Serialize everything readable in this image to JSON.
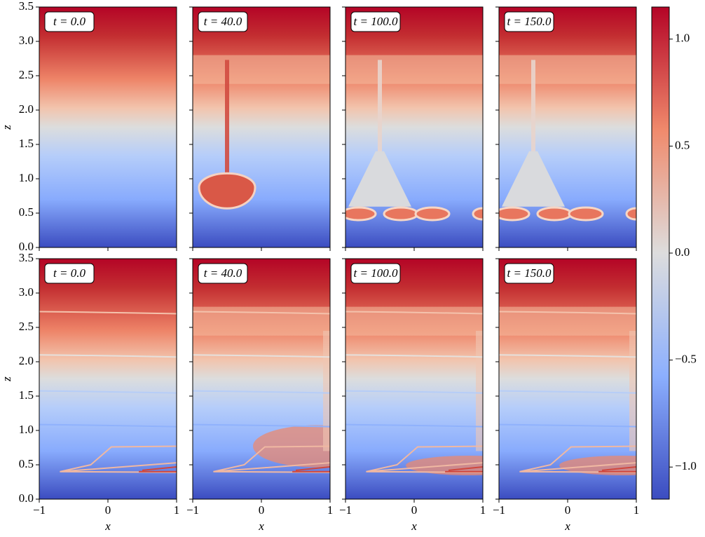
{
  "chart_data": {
    "type": "heatmap",
    "panels": [
      "t = 0.0",
      "t = 40.0",
      "t = 100.0",
      "t = 150.0",
      "t = 0.0",
      "t = 40.0",
      "t = 100.0",
      "t = 150.0"
    ],
    "xlabel": "x",
    "ylabel": "z",
    "xlim": [
      -1,
      1
    ],
    "xticks": [
      {
        "value": -1,
        "label": "−1"
      },
      0,
      1
    ],
    "ylim": [
      0,
      3.5
    ],
    "yticks": [
      {
        "value": 0,
        "label": "0.0"
      },
      0.5,
      {
        "value": 1,
        "label": "1.0"
      },
      1.5,
      {
        "value": 2,
        "label": "2.0"
      },
      2.5,
      {
        "value": 3,
        "label": "3.0"
      },
      3.5
    ],
    "colorbar": {
      "lim": [
        -1.15,
        1.15
      ],
      "ticks": [
        {
          "value": -1,
          "label": "−1.0"
        },
        {
          "value": -0.5,
          "label": "−0.5"
        },
        {
          "value": 0,
          "label": "0.0"
        },
        0.5,
        {
          "value": 1,
          "label": "1.0"
        }
      ]
    }
  }
}
